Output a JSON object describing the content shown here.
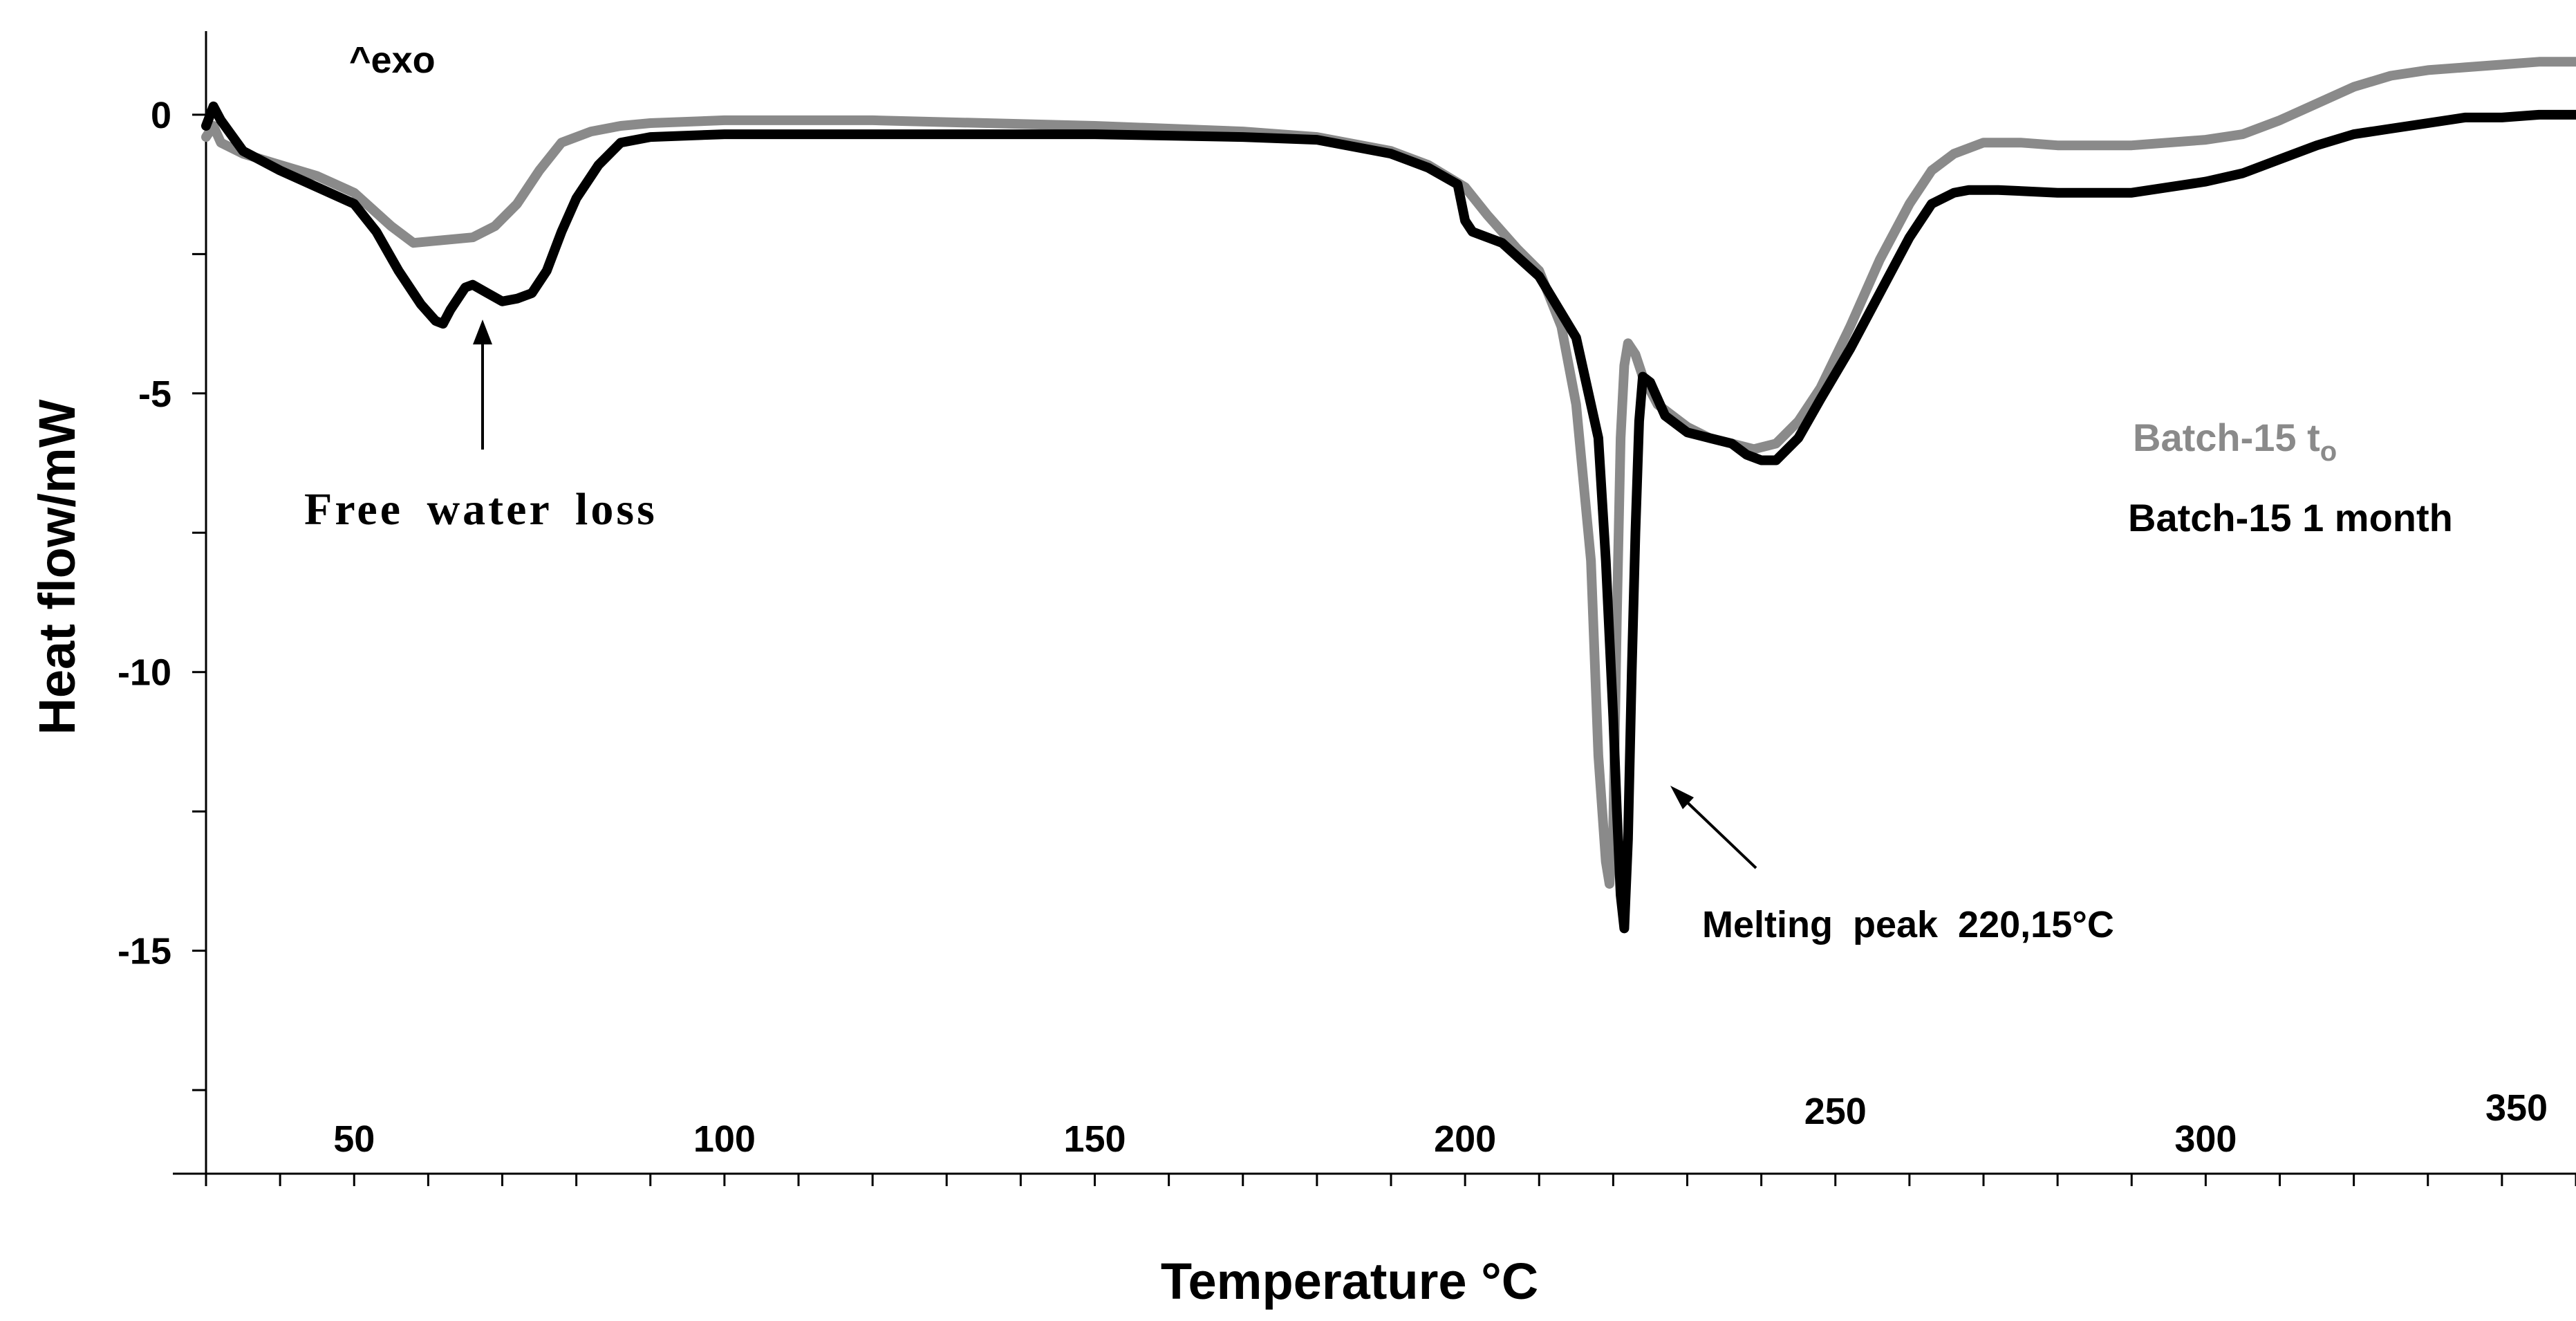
{
  "chart_data": {
    "type": "line",
    "title": "",
    "xlabel": "Temperature °C",
    "ylabel": "Heat flow/mW",
    "xlim": [
      30,
      350
    ],
    "ylim": [
      -19,
      1.5
    ],
    "xticks": [
      50,
      100,
      150,
      200,
      250,
      300,
      350
    ],
    "xtick_labels": [
      "50",
      "100",
      "150",
      "200",
      "250",
      "300",
      "350"
    ],
    "yticks": [
      0,
      -5,
      -10,
      -15
    ],
    "ytick_labels": [
      "0",
      "-5",
      "-10",
      "-15"
    ],
    "grid": false,
    "legend_position": "right",
    "exo_label": "^exo",
    "series": [
      {
        "name": "Batch-15 t",
        "name_subscript": "o",
        "color": "#8a8a8a",
        "x": [
          30,
          31,
          32,
          35,
          40,
          45,
          50,
          55,
          58,
          62,
          66,
          69,
          72,
          75,
          78,
          82,
          86,
          90,
          100,
          120,
          150,
          170,
          180,
          190,
          195,
          200,
          203,
          207,
          210,
          213,
          215,
          217,
          218,
          219,
          219.5,
          220,
          220.5,
          221,
          221.5,
          222,
          223,
          224,
          226,
          230,
          233,
          236,
          239,
          242,
          245,
          248,
          252,
          256,
          260,
          263,
          266,
          270,
          275,
          280,
          290,
          300,
          305,
          310,
          315,
          320,
          325,
          330,
          335,
          340,
          345,
          350
        ],
        "y": [
          -0.4,
          -0.2,
          -0.5,
          -0.7,
          -0.9,
          -1.1,
          -1.4,
          -2.0,
          -2.3,
          -2.25,
          -2.2,
          -2.0,
          -1.6,
          -1.0,
          -0.5,
          -0.3,
          -0.2,
          -0.15,
          -0.1,
          -0.1,
          -0.2,
          -0.3,
          -0.4,
          -0.65,
          -0.9,
          -1.3,
          -1.8,
          -2.4,
          -2.8,
          -3.8,
          -5.2,
          -8.0,
          -11.5,
          -13.4,
          -13.8,
          -12.8,
          -9.0,
          -5.8,
          -4.5,
          -4.1,
          -4.3,
          -4.7,
          -5.2,
          -5.6,
          -5.8,
          -5.9,
          -6.0,
          -5.9,
          -5.5,
          -4.9,
          -3.8,
          -2.6,
          -1.6,
          -1.0,
          -0.7,
          -0.5,
          -0.5,
          -0.55,
          -0.55,
          -0.45,
          -0.35,
          -0.1,
          0.2,
          0.5,
          0.7,
          0.8,
          0.85,
          0.9,
          0.95,
          0.95
        ]
      },
      {
        "name": "Batch-15 1 month",
        "color": "#000000",
        "x": [
          30,
          31,
          32,
          35,
          40,
          45,
          50,
          53,
          56,
          59,
          61,
          62,
          63,
          65,
          66,
          68,
          70,
          72,
          74,
          76,
          78,
          80,
          83,
          86,
          90,
          100,
          120,
          150,
          170,
          180,
          190,
          195,
          199,
          200,
          201,
          205,
          210,
          215,
          218,
          219,
          220,
          220.5,
          221,
          221.5,
          222,
          222.5,
          223,
          223.5,
          224,
          225,
          227,
          230,
          233,
          236,
          238,
          240,
          242,
          245,
          248,
          252,
          256,
          260,
          263,
          266,
          268,
          272,
          280,
          290,
          300,
          305,
          310,
          315,
          320,
          325,
          330,
          335,
          340,
          345,
          350
        ],
        "y": [
          -0.2,
          0.15,
          -0.1,
          -0.65,
          -1.0,
          -1.3,
          -1.6,
          -2.1,
          -2.8,
          -3.4,
          -3.7,
          -3.75,
          -3.5,
          -3.1,
          -3.05,
          -3.2,
          -3.35,
          -3.3,
          -3.2,
          -2.8,
          -2.1,
          -1.5,
          -0.9,
          -0.5,
          -0.4,
          -0.35,
          -0.35,
          -0.35,
          -0.4,
          -0.45,
          -0.7,
          -0.95,
          -1.25,
          -1.9,
          -2.1,
          -2.3,
          -2.9,
          -4.0,
          -5.8,
          -8.0,
          -10.8,
          -12.5,
          -14.0,
          -14.6,
          -13.0,
          -10.0,
          -7.5,
          -5.5,
          -4.7,
          -4.8,
          -5.4,
          -5.7,
          -5.8,
          -5.9,
          -6.1,
          -6.2,
          -6.2,
          -5.8,
          -5.1,
          -4.2,
          -3.2,
          -2.2,
          -1.6,
          -1.4,
          -1.35,
          -1.35,
          -1.4,
          -1.4,
          -1.2,
          -1.05,
          -0.8,
          -0.55,
          -0.35,
          -0.25,
          -0.15,
          -0.05,
          -0.05,
          0.0,
          0.0
        ]
      }
    ],
    "annotations": [
      {
        "text": "Free water  loss",
        "arrow_to": [
          68,
          -3.8
        ]
      },
      {
        "text": "Melting  peak  220,15°C",
        "arrow_to": [
          222.5,
          -12.5
        ]
      }
    ]
  }
}
